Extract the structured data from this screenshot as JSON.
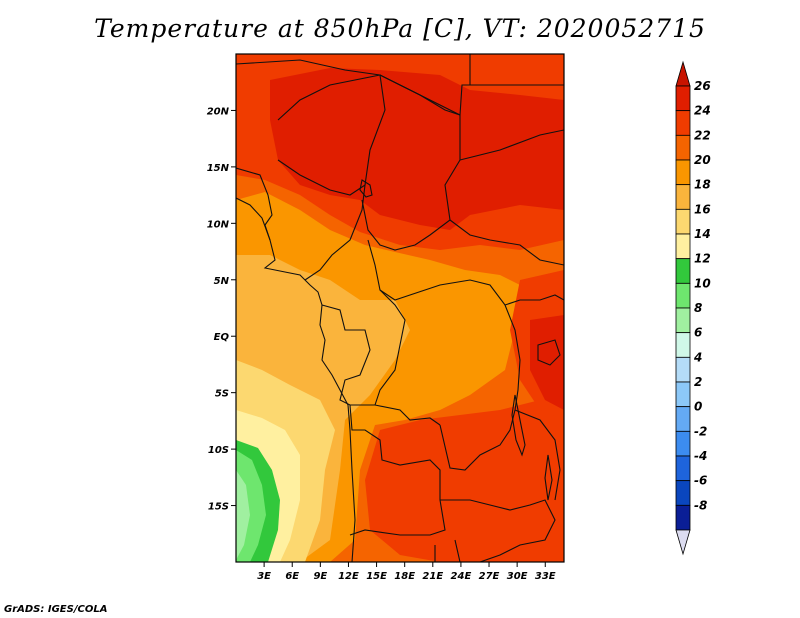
{
  "title": "Temperature at 850hPa [C], VT: 2020052715",
  "credit": "GrADS: IGES/COLA",
  "map": {
    "lon_range": [
      0,
      35
    ],
    "lat_range": [
      -20,
      25
    ],
    "lat_ticks": [
      {
        "value": 20,
        "label": "20N"
      },
      {
        "value": 15,
        "label": "15N"
      },
      {
        "value": 10,
        "label": "10N"
      },
      {
        "value": 5,
        "label": "5N"
      },
      {
        "value": 0,
        "label": "EQ"
      },
      {
        "value": -5,
        "label": "5S"
      },
      {
        "value": -10,
        "label": "10S"
      },
      {
        "value": -15,
        "label": "15S"
      }
    ],
    "lon_ticks": [
      {
        "value": 3,
        "label": "3E"
      },
      {
        "value": 6,
        "label": "6E"
      },
      {
        "value": 9,
        "label": "9E"
      },
      {
        "value": 12,
        "label": "12E"
      },
      {
        "value": 15,
        "label": "15E"
      },
      {
        "value": 18,
        "label": "18E"
      },
      {
        "value": 21,
        "label": "21E"
      },
      {
        "value": 24,
        "label": "24E"
      },
      {
        "value": 27,
        "label": "27E"
      },
      {
        "value": 30,
        "label": "30E"
      },
      {
        "value": 33,
        "label": "33E"
      }
    ]
  },
  "colorbar": {
    "levels": [
      {
        "label": "26",
        "color": "#e01e00"
      },
      {
        "label": "24",
        "color": "#f03c00"
      },
      {
        "label": "22",
        "color": "#f56400"
      },
      {
        "label": "20",
        "color": "#fa9600"
      },
      {
        "label": "18",
        "color": "#fab43c"
      },
      {
        "label": "16",
        "color": "#fcd870"
      },
      {
        "label": "14",
        "color": "#fff0a0"
      },
      {
        "label": "12",
        "color": "#32c83c"
      },
      {
        "label": "10",
        "color": "#6ee66e"
      },
      {
        "label": "8",
        "color": "#a0f0a0"
      },
      {
        "label": "6",
        "color": "#d0f8e8"
      },
      {
        "label": "4",
        "color": "#b4dcf8"
      },
      {
        "label": "2",
        "color": "#8cc8f8"
      },
      {
        "label": "0",
        "color": "#64aaf5"
      },
      {
        "label": "-2",
        "color": "#3c8cf0"
      },
      {
        "label": "-4",
        "color": "#1e64dc"
      },
      {
        "label": "-6",
        "color": "#0a46be"
      },
      {
        "label": "-8",
        "color": "#0a1e96"
      }
    ],
    "top_color": "#c81400",
    "bottom_color": "#dcdcf0"
  }
}
